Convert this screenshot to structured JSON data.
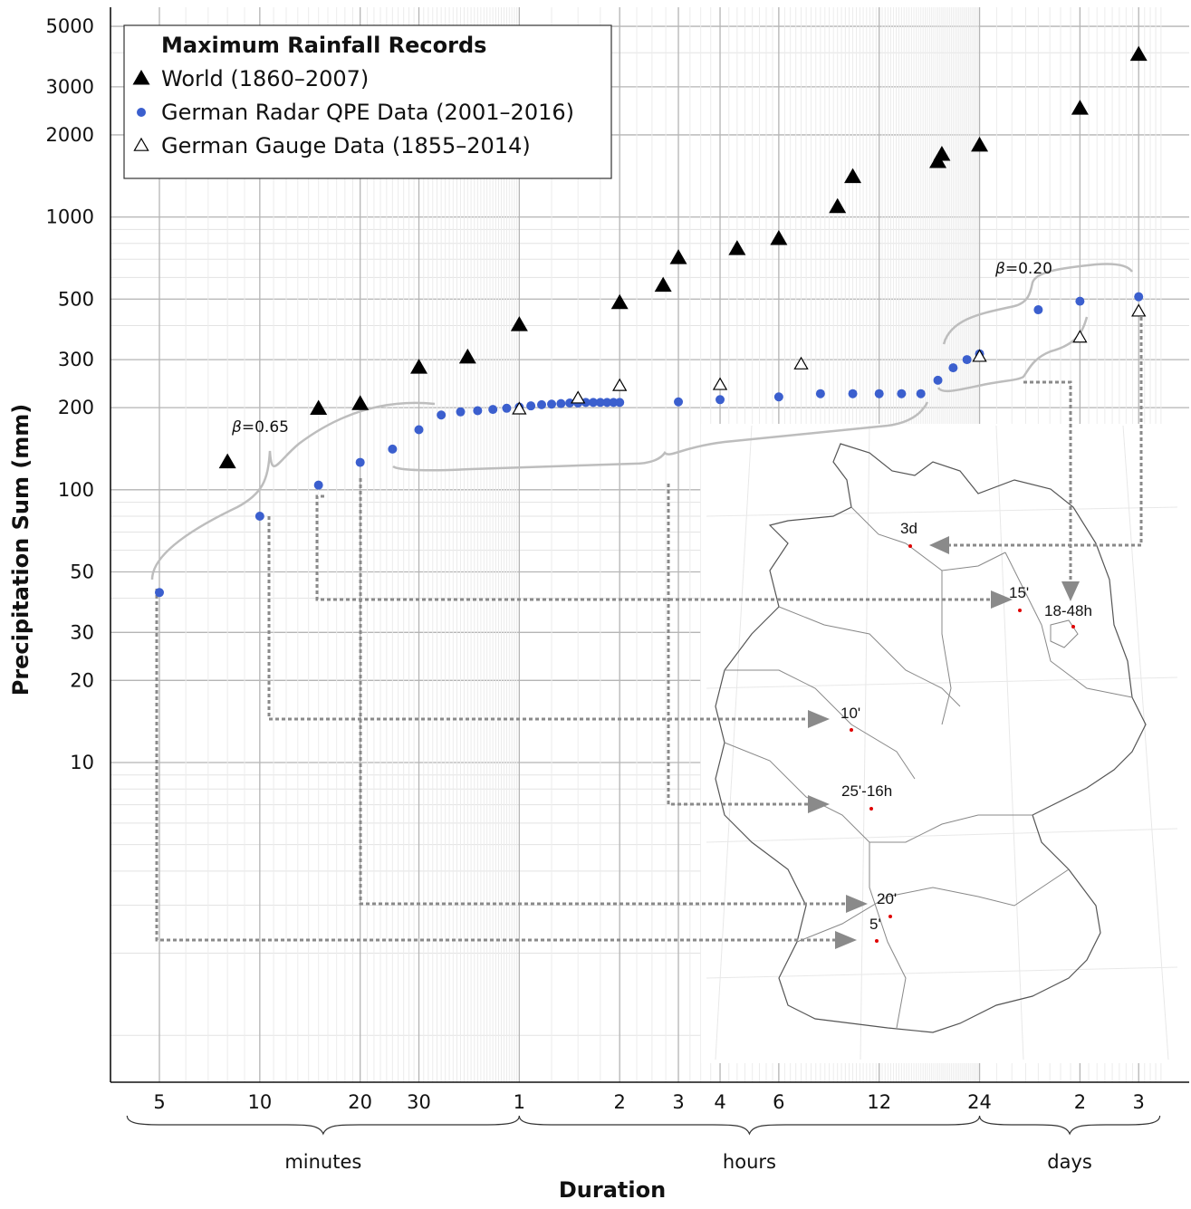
{
  "chart_data": {
    "type": "scatter",
    "x_scale": "log",
    "y_scale": "log",
    "xlabel": "Duration",
    "ylabel": "Precipitation Sum (mm)",
    "grid": true,
    "legend": {
      "title": "Maximum Rainfall Records",
      "placement": "top-left"
    },
    "ylim_mm": [
      1,
      5000
    ],
    "xlim_minutes": [
      4,
      5000
    ],
    "y_ticks": [
      "5000",
      "3000",
      "2000",
      "1000",
      "500",
      "300",
      "200",
      "100",
      "50",
      "30",
      "20",
      "10"
    ],
    "y_tick_values": [
      5000,
      3000,
      2000,
      1000,
      500,
      300,
      200,
      100,
      50,
      30,
      20,
      10
    ],
    "x_ticks": [
      {
        "label": "5",
        "minutes": 5
      },
      {
        "label": "10",
        "minutes": 10
      },
      {
        "label": "20",
        "minutes": 20
      },
      {
        "label": "30",
        "minutes": 30
      },
      {
        "label": "1",
        "minutes": 60
      },
      {
        "label": "2",
        "minutes": 120
      },
      {
        "label": "3",
        "minutes": 180
      },
      {
        "label": "4",
        "minutes": 240
      },
      {
        "label": "6",
        "minutes": 360
      },
      {
        "label": "12",
        "minutes": 720
      },
      {
        "label": "24",
        "minutes": 1440
      },
      {
        "label": "2",
        "minutes": 2880
      },
      {
        "label": "3",
        "minutes": 4320
      }
    ],
    "x_ranges": [
      {
        "label": "minutes",
        "from": 4,
        "to": 60
      },
      {
        "label": "hours",
        "from": 60,
        "to": 1440
      },
      {
        "label": "days",
        "from": 1440,
        "to": 5000
      }
    ],
    "series": [
      {
        "name": "World (1860–2007)",
        "marker": "filled-triangle",
        "color": "#000000",
        "points": [
          {
            "x": 8,
            "y": 126
          },
          {
            "x": 15,
            "y": 198
          },
          {
            "x": 20,
            "y": 206
          },
          {
            "x": 30,
            "y": 280
          },
          {
            "x": 42,
            "y": 305
          },
          {
            "x": 60,
            "y": 401
          },
          {
            "x": 120,
            "y": 483
          },
          {
            "x": 162,
            "y": 559
          },
          {
            "x": 180,
            "y": 706
          },
          {
            "x": 270,
            "y": 762
          },
          {
            "x": 360,
            "y": 830
          },
          {
            "x": 540,
            "y": 1087
          },
          {
            "x": 600,
            "y": 1400
          },
          {
            "x": 1080,
            "y": 1589
          },
          {
            "x": 1110,
            "y": 1689
          },
          {
            "x": 1440,
            "y": 1825
          },
          {
            "x": 2880,
            "y": 2493
          },
          {
            "x": 4320,
            "y": 3929
          }
        ]
      },
      {
        "name": "German Radar QPE Data (2001–2016)",
        "marker": "filled-circle",
        "color": "#3b5fce",
        "points": [
          {
            "x": 5,
            "y": 42
          },
          {
            "x": 10,
            "y": 80
          },
          {
            "x": 15,
            "y": 104
          },
          {
            "x": 20,
            "y": 126
          },
          {
            "x": 25,
            "y": 141
          },
          {
            "x": 30,
            "y": 166
          },
          {
            "x": 35,
            "y": 188
          },
          {
            "x": 40,
            "y": 193
          },
          {
            "x": 45,
            "y": 195
          },
          {
            "x": 50,
            "y": 197
          },
          {
            "x": 55,
            "y": 199
          },
          {
            "x": 60,
            "y": 201
          },
          {
            "x": 65,
            "y": 203
          },
          {
            "x": 70,
            "y": 205
          },
          {
            "x": 75,
            "y": 206
          },
          {
            "x": 80,
            "y": 207
          },
          {
            "x": 85,
            "y": 208
          },
          {
            "x": 90,
            "y": 208
          },
          {
            "x": 95,
            "y": 209
          },
          {
            "x": 100,
            "y": 209
          },
          {
            "x": 105,
            "y": 209
          },
          {
            "x": 110,
            "y": 209
          },
          {
            "x": 115,
            "y": 209
          },
          {
            "x": 120,
            "y": 209
          },
          {
            "x": 180,
            "y": 210
          },
          {
            "x": 240,
            "y": 214
          },
          {
            "x": 360,
            "y": 219
          },
          {
            "x": 480,
            "y": 225
          },
          {
            "x": 600,
            "y": 225
          },
          {
            "x": 720,
            "y": 225
          },
          {
            "x": 840,
            "y": 225
          },
          {
            "x": 960,
            "y": 225
          },
          {
            "x": 1080,
            "y": 252
          },
          {
            "x": 1200,
            "y": 280
          },
          {
            "x": 1320,
            "y": 300
          },
          {
            "x": 1440,
            "y": 315
          },
          {
            "x": 2160,
            "y": 457
          },
          {
            "x": 2880,
            "y": 491
          },
          {
            "x": 4320,
            "y": 510
          }
        ]
      },
      {
        "name": "German Gauge Data (1855–2014)",
        "marker": "open-triangle",
        "color": "#000000",
        "points": [
          {
            "x": 60,
            "y": 197
          },
          {
            "x": 90,
            "y": 216
          },
          {
            "x": 120,
            "y": 240
          },
          {
            "x": 240,
            "y": 242
          },
          {
            "x": 420,
            "y": 288
          },
          {
            "x": 1440,
            "y": 307
          },
          {
            "x": 2880,
            "y": 361
          },
          {
            "x": 4320,
            "y": 450
          }
        ]
      }
    ],
    "annotations": [
      {
        "text": "β=0.65",
        "beta": "β",
        "value": "=0.65"
      },
      {
        "text": "β=0.20",
        "beta": "β",
        "value": "=0.20"
      }
    ],
    "inset_map": {
      "labels": [
        "3d",
        "15'",
        "18-48h",
        "10'",
        "25'-16h",
        "20'",
        "5'"
      ]
    }
  }
}
